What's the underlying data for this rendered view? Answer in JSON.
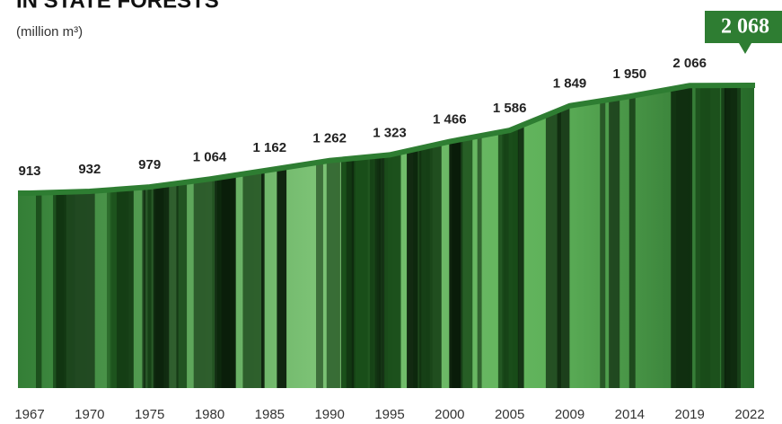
{
  "chart_data": {
    "type": "area",
    "title": "IN STATE FORESTS",
    "subtitle": "(million m³)",
    "categories": [
      "1967",
      "1970",
      "1975",
      "1980",
      "1985",
      "1990",
      "1995",
      "2000",
      "2005",
      "2009",
      "2014",
      "2019",
      "2022"
    ],
    "values": [
      913,
      932,
      979,
      1064,
      1162,
      1262,
      1323,
      1466,
      1586,
      1849,
      1950,
      2066,
      2068
    ],
    "value_labels": [
      "913",
      "932",
      "979",
      "1 064",
      "1 162",
      "1 262",
      "1 323",
      "1 466",
      "1 586",
      "1 849",
      "1 950",
      "2 066",
      "2 068"
    ],
    "color": "#2e7d32"
  }
}
